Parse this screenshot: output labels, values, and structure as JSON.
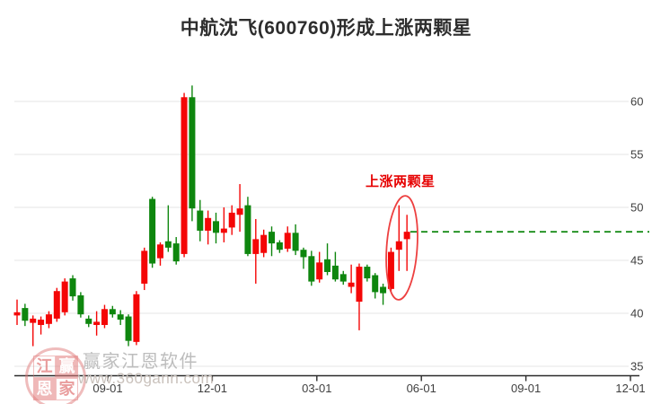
{
  "title": "中航沈飞(600760)形成上涨两颗星",
  "annotation": {
    "label": "上涨两颗星"
  },
  "watermark": {
    "brand": "赢家江恩软件",
    "url": "www.360gann.com",
    "logo_chars": [
      "江",
      "赢",
      "恩",
      "家"
    ]
  },
  "colors": {
    "up": "#f40606",
    "down": "#0e860e",
    "reference_line": "#008000",
    "annotation": "#e60000",
    "ellipse": "#ed4040",
    "grid": "#e5e5e5",
    "axis": "#2b2b2b",
    "tick_label": "#3f3f3f"
  },
  "chart_data": {
    "type": "candlestick",
    "title": "中航沈飞(600760)形成上涨两颗星",
    "y_axis": {
      "ticks": [
        60,
        55,
        50,
        45,
        40,
        35
      ],
      "range": [
        35,
        60
      ],
      "side": "right"
    },
    "x_axis": {
      "ticks": [
        "09-01",
        "12-01",
        "03-01",
        "06-01",
        "09-01",
        "12-01"
      ]
    },
    "reference_line": {
      "value": 47.7,
      "style": "dashed"
    },
    "highlight": {
      "label": "上涨两颗星",
      "circled_candle_indices": [
        47,
        48,
        49
      ]
    },
    "candles": [
      {
        "o": 39.8,
        "h": 41.3,
        "l": 38.9,
        "c": 40.1
      },
      {
        "o": 40.5,
        "h": 40.9,
        "l": 38.8,
        "c": 39.3
      },
      {
        "o": 39.1,
        "h": 39.8,
        "l": 36.9,
        "c": 39.5
      },
      {
        "o": 38.9,
        "h": 39.7,
        "l": 38.0,
        "c": 39.4
      },
      {
        "o": 39.0,
        "h": 40.2,
        "l": 38.6,
        "c": 39.9
      },
      {
        "o": 39.5,
        "h": 42.4,
        "l": 39.2,
        "c": 42.1
      },
      {
        "o": 40.1,
        "h": 43.3,
        "l": 39.8,
        "c": 43.0
      },
      {
        "o": 43.3,
        "h": 43.6,
        "l": 41.2,
        "c": 41.6
      },
      {
        "o": 41.7,
        "h": 42.0,
        "l": 39.6,
        "c": 39.9
      },
      {
        "o": 39.5,
        "h": 39.8,
        "l": 38.7,
        "c": 39.0
      },
      {
        "o": 38.9,
        "h": 40.2,
        "l": 37.9,
        "c": 39.2
      },
      {
        "o": 38.9,
        "h": 40.8,
        "l": 38.6,
        "c": 40.4
      },
      {
        "o": 40.4,
        "h": 40.7,
        "l": 39.6,
        "c": 39.9
      },
      {
        "o": 39.9,
        "h": 40.3,
        "l": 38.9,
        "c": 39.4
      },
      {
        "o": 39.7,
        "h": 39.9,
        "l": 36.9,
        "c": 37.4
      },
      {
        "o": 37.3,
        "h": 42.1,
        "l": 37.0,
        "c": 41.8
      },
      {
        "o": 42.8,
        "h": 46.2,
        "l": 42.2,
        "c": 45.9
      },
      {
        "o": 50.8,
        "h": 51.0,
        "l": 44.3,
        "c": 44.7
      },
      {
        "o": 45.2,
        "h": 46.7,
        "l": 44.5,
        "c": 46.5
      },
      {
        "o": 46.8,
        "h": 50.2,
        "l": 45.8,
        "c": 46.2
      },
      {
        "o": 46.6,
        "h": 47.2,
        "l": 44.6,
        "c": 44.9
      },
      {
        "o": 45.6,
        "h": 60.8,
        "l": 45.3,
        "c": 60.4
      },
      {
        "o": 60.4,
        "h": 61.5,
        "l": 48.7,
        "c": 49.9
      },
      {
        "o": 49.7,
        "h": 50.7,
        "l": 46.8,
        "c": 47.8
      },
      {
        "o": 47.8,
        "h": 49.7,
        "l": 46.5,
        "c": 49.0
      },
      {
        "o": 48.7,
        "h": 49.5,
        "l": 46.6,
        "c": 47.6
      },
      {
        "o": 47.6,
        "h": 50.0,
        "l": 46.7,
        "c": 48.0
      },
      {
        "o": 48.1,
        "h": 50.2,
        "l": 47.4,
        "c": 49.5
      },
      {
        "o": 49.3,
        "h": 52.2,
        "l": 47.7,
        "c": 49.9
      },
      {
        "o": 50.2,
        "h": 51.0,
        "l": 45.4,
        "c": 45.6
      },
      {
        "o": 45.6,
        "h": 48.9,
        "l": 42.8,
        "c": 47.0
      },
      {
        "o": 45.7,
        "h": 47.9,
        "l": 45.3,
        "c": 47.4
      },
      {
        "o": 47.7,
        "h": 48.2,
        "l": 45.4,
        "c": 46.6
      },
      {
        "o": 46.7,
        "h": 46.9,
        "l": 45.7,
        "c": 46.0
      },
      {
        "o": 46.1,
        "h": 48.2,
        "l": 45.8,
        "c": 47.6
      },
      {
        "o": 47.6,
        "h": 48.4,
        "l": 45.5,
        "c": 45.9
      },
      {
        "o": 46.0,
        "h": 46.2,
        "l": 44.2,
        "c": 45.3
      },
      {
        "o": 45.4,
        "h": 45.9,
        "l": 42.6,
        "c": 43.0
      },
      {
        "o": 43.2,
        "h": 45.8,
        "l": 42.9,
        "c": 44.8
      },
      {
        "o": 45.1,
        "h": 46.6,
        "l": 43.6,
        "c": 43.9
      },
      {
        "o": 44.5,
        "h": 45.8,
        "l": 43.0,
        "c": 43.2
      },
      {
        "o": 43.7,
        "h": 44.0,
        "l": 42.7,
        "c": 43.0
      },
      {
        "o": 42.5,
        "h": 44.6,
        "l": 41.9,
        "c": 42.9
      },
      {
        "o": 41.1,
        "h": 44.7,
        "l": 38.4,
        "c": 44.4
      },
      {
        "o": 44.4,
        "h": 44.6,
        "l": 43.0,
        "c": 43.3
      },
      {
        "o": 43.6,
        "h": 43.8,
        "l": 41.4,
        "c": 42.0
      },
      {
        "o": 42.5,
        "h": 42.8,
        "l": 40.8,
        "c": 41.9
      },
      {
        "o": 42.3,
        "h": 46.2,
        "l": 42.0,
        "c": 45.8
      },
      {
        "o": 46.0,
        "h": 50.2,
        "l": 44.0,
        "c": 46.8
      },
      {
        "o": 47.0,
        "h": 49.3,
        "l": 44.0,
        "c": 47.7
      }
    ]
  }
}
